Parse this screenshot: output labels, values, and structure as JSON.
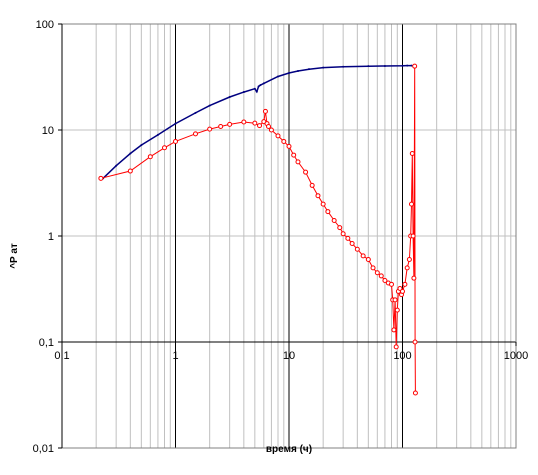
{
  "chart_data": {
    "type": "scatter",
    "title": "",
    "xlabel": "время (ч)",
    "ylabel": "^P ат",
    "xscale": "log",
    "yscale": "log",
    "xlim": [
      0.1,
      1000
    ],
    "ylim": [
      0.01,
      100
    ],
    "grid": true,
    "legend": "none",
    "x_tick_labels": [
      "0,1",
      "1",
      "10",
      "100",
      "1000"
    ],
    "y_tick_labels": [
      "0,01",
      "0,1",
      "1",
      "10",
      "100"
    ],
    "colors": {
      "pressure": "#000080",
      "derivative": "#ff0000",
      "grid_minor": "#c0c0c0",
      "grid_major": "#000000"
    },
    "series": [
      {
        "marker": "none",
        "x": [
          0.23,
          0.3,
          0.4,
          0.5,
          0.7,
          1.0,
          1.5,
          2.0,
          3.0,
          4.0,
          5.0,
          5.2,
          5.4,
          5.6,
          6.0,
          8.0,
          10,
          12,
          15,
          20,
          30,
          50,
          70,
          100,
          110,
          120
        ],
        "y": [
          3.5,
          4.6,
          6.0,
          7.2,
          9.0,
          11.5,
          14.5,
          17.0,
          20.5,
          22.8,
          24.5,
          23.0,
          25.8,
          26.5,
          27.5,
          32.0,
          34.5,
          36.0,
          37.5,
          38.8,
          39.5,
          40.0,
          40.2,
          40.3,
          40.5,
          40.5
        ]
      },
      {
        "marker": "circle",
        "x": [
          0.22,
          0.4,
          0.6,
          0.8,
          1.0,
          1.5,
          2.0,
          2.5,
          3.0,
          4.0,
          5.0,
          5.5,
          6.0,
          6.2,
          6.4,
          6.6,
          7.0,
          8.0,
          9.0,
          10,
          11,
          12,
          14,
          16,
          18,
          20,
          22,
          25,
          28,
          30,
          33,
          36,
          40,
          45,
          50,
          55,
          60,
          65,
          70,
          75,
          80,
          82,
          84,
          86,
          88,
          90,
          92,
          95,
          98,
          100,
          105,
          110,
          115,
          118,
          120,
          122,
          124,
          126,
          128,
          129,
          130
        ],
        "y": [
          3.5,
          4.1,
          5.6,
          6.8,
          7.8,
          9.2,
          10.2,
          10.8,
          11.3,
          11.9,
          11.6,
          11.0,
          12.0,
          15.0,
          11.5,
          10.8,
          10.0,
          8.8,
          7.8,
          7.0,
          5.8,
          5.0,
          4.0,
          3.0,
          2.4,
          2.0,
          1.7,
          1.4,
          1.2,
          1.05,
          0.95,
          0.85,
          0.75,
          0.65,
          0.6,
          0.5,
          0.45,
          0.42,
          0.38,
          0.36,
          0.35,
          0.25,
          0.13,
          0.25,
          0.09,
          0.2,
          0.3,
          0.32,
          0.28,
          0.3,
          0.35,
          0.5,
          0.6,
          1.0,
          2.0,
          6.0,
          1.0,
          0.4,
          40,
          0.1,
          0.033
        ]
      }
    ]
  }
}
